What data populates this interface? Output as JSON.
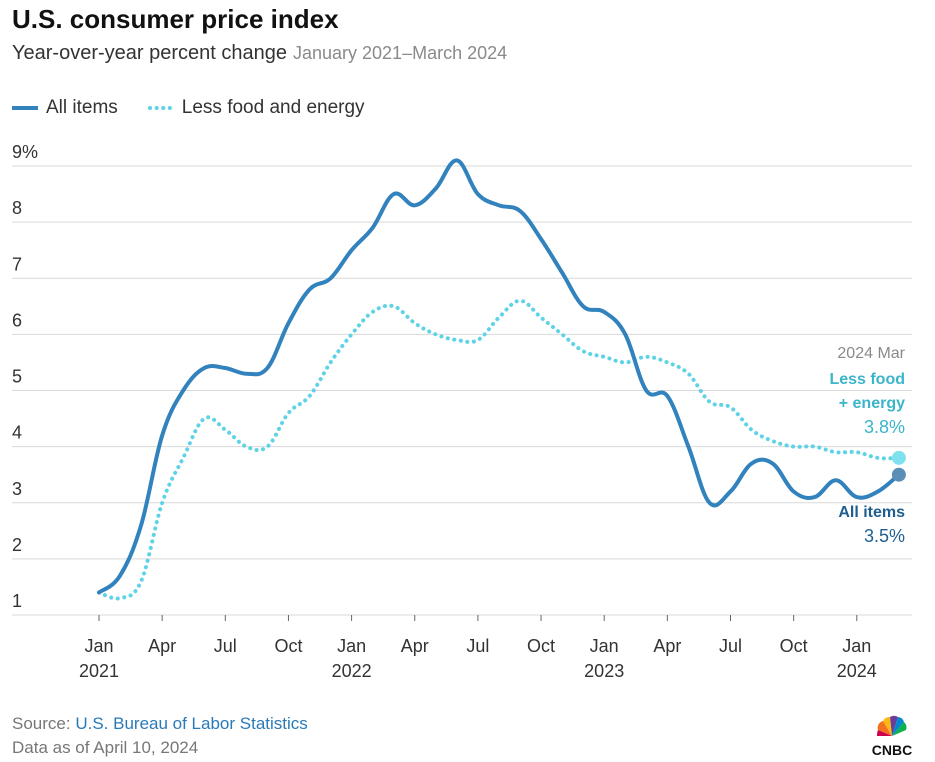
{
  "header": {
    "title": "U.S. consumer price index",
    "subtitle": "Year-over-year percent change",
    "date_range": "January 2021–March 2024"
  },
  "annotations": {
    "period": "2024 Mar",
    "core_label_1": "Less food",
    "core_label_2": "+ energy",
    "core_value": "3.8%",
    "all_label": "All items",
    "all_value": "3.5%"
  },
  "footer": {
    "source_prefix": "Source:",
    "source_name": "U.S. Bureau of Labor Statistics",
    "data_as_of": "Data as of April 10, 2024"
  },
  "brand": {
    "name": "CNBC"
  },
  "colors": {
    "all_items": "#3182bd",
    "core": "#5fd3e6",
    "core_label": "#3bb5c9",
    "all_label": "#1f5f8f",
    "grid": "#d9d9d9"
  },
  "chart_data": {
    "type": "line",
    "x": [
      "2021-01",
      "2021-02",
      "2021-03",
      "2021-04",
      "2021-05",
      "2021-06",
      "2021-07",
      "2021-08",
      "2021-09",
      "2021-10",
      "2021-11",
      "2021-12",
      "2022-01",
      "2022-02",
      "2022-03",
      "2022-04",
      "2022-05",
      "2022-06",
      "2022-07",
      "2022-08",
      "2022-09",
      "2022-10",
      "2022-11",
      "2022-12",
      "2023-01",
      "2023-02",
      "2023-03",
      "2023-04",
      "2023-05",
      "2023-06",
      "2023-07",
      "2023-08",
      "2023-09",
      "2023-10",
      "2023-11",
      "2023-12",
      "2024-01",
      "2024-02",
      "2024-03"
    ],
    "series": [
      {
        "name": "All items",
        "style": "solid",
        "values": [
          1.4,
          1.7,
          2.6,
          4.2,
          5.0,
          5.4,
          5.4,
          5.3,
          5.4,
          6.2,
          6.8,
          7.0,
          7.5,
          7.9,
          8.5,
          8.3,
          8.6,
          9.1,
          8.5,
          8.3,
          8.2,
          7.7,
          7.1,
          6.5,
          6.4,
          6.0,
          5.0,
          4.9,
          4.0,
          3.0,
          3.2,
          3.7,
          3.7,
          3.2,
          3.1,
          3.4,
          3.1,
          3.2,
          3.5
        ]
      },
      {
        "name": "Less food and energy",
        "style": "dotted",
        "values": [
          1.4,
          1.3,
          1.6,
          3.0,
          3.8,
          4.5,
          4.3,
          4.0,
          4.0,
          4.6,
          4.9,
          5.5,
          6.0,
          6.4,
          6.5,
          6.2,
          6.0,
          5.9,
          5.9,
          6.3,
          6.6,
          6.3,
          6.0,
          5.7,
          5.6,
          5.5,
          5.6,
          5.5,
          5.3,
          4.8,
          4.7,
          4.3,
          4.1,
          4.0,
          4.0,
          3.9,
          3.9,
          3.8,
          3.8
        ]
      }
    ],
    "ylim": [
      1,
      9
    ],
    "yticks": [
      {
        "value": 1,
        "label": "1"
      },
      {
        "value": 2,
        "label": "2"
      },
      {
        "value": 3,
        "label": "3"
      },
      {
        "value": 4,
        "label": "4"
      },
      {
        "value": 5,
        "label": "5"
      },
      {
        "value": 6,
        "label": "6"
      },
      {
        "value": 7,
        "label": "7"
      },
      {
        "value": 8,
        "label": "8"
      },
      {
        "value": 9,
        "label": "9%"
      }
    ],
    "xticks": [
      {
        "date": "2021-01",
        "label": "Jan",
        "year": "2021"
      },
      {
        "date": "2021-04",
        "label": "Apr"
      },
      {
        "date": "2021-07",
        "label": "Jul"
      },
      {
        "date": "2021-10",
        "label": "Oct"
      },
      {
        "date": "2022-01",
        "label": "Jan",
        "year": "2022"
      },
      {
        "date": "2022-04",
        "label": "Apr"
      },
      {
        "date": "2022-07",
        "label": "Jul"
      },
      {
        "date": "2022-10",
        "label": "Oct"
      },
      {
        "date": "2023-01",
        "label": "Jan",
        "year": "2023"
      },
      {
        "date": "2023-04",
        "label": "Apr"
      },
      {
        "date": "2023-07",
        "label": "Jul"
      },
      {
        "date": "2023-10",
        "label": "Oct"
      },
      {
        "date": "2024-01",
        "label": "Jan",
        "year": "2024"
      }
    ],
    "grid": true,
    "legend": "top-left"
  }
}
